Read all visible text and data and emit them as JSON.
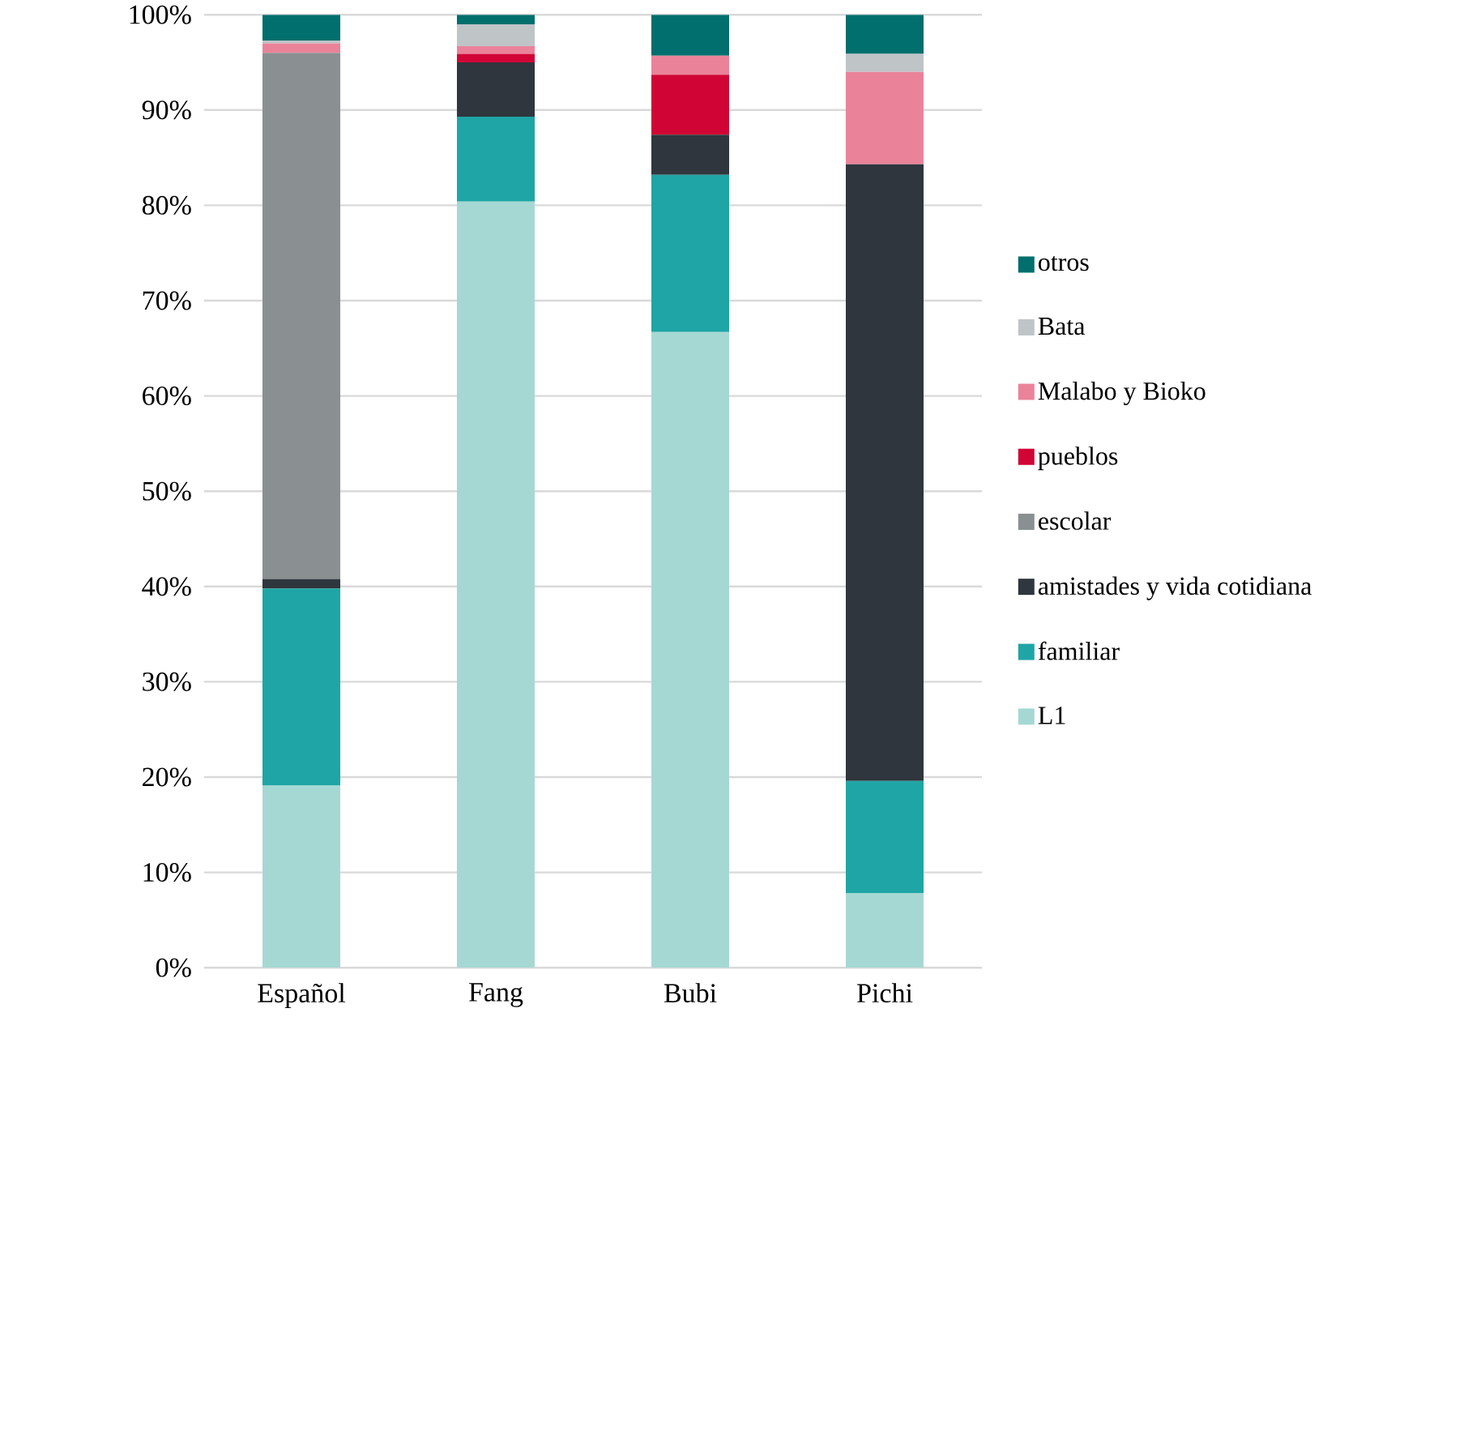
{
  "chart_data": {
    "type": "bar",
    "stacked": true,
    "categories": [
      "Español",
      "Fang",
      "Bubi",
      "Pichi"
    ],
    "series": [
      {
        "name": "L1",
        "color": "#a6d8d3",
        "values": [
          19.1,
          80.4,
          66.7,
          7.8
        ]
      },
      {
        "name": "familiar",
        "color": "#1fa5a5",
        "values": [
          20.7,
          8.9,
          16.5,
          11.8
        ]
      },
      {
        "name": "amistades y vida cotidiana",
        "color": "#2f363d",
        "values": [
          1.0,
          5.7,
          4.2,
          64.7
        ]
      },
      {
        "name": "escolar",
        "color": "#8a8f92",
        "values": [
          55.2,
          0,
          0,
          0
        ]
      },
      {
        "name": "pueblos",
        "color": "#d10535",
        "values": [
          0,
          0.9,
          6.3,
          0
        ]
      },
      {
        "name": "Malabo y Bioko",
        "color": "#ea8399",
        "values": [
          1.0,
          0.8,
          2.0,
          9.7
        ]
      },
      {
        "name": "Bata",
        "color": "#bfc4c7",
        "values": [
          0.3,
          2.3,
          0,
          1.9
        ]
      },
      {
        "name": "otros",
        "color": "#006f6d",
        "values": [
          2.7,
          1.0,
          4.3,
          4.1
        ]
      }
    ],
    "ylim": [
      0,
      100
    ],
    "yticks": [
      {
        "value": 0,
        "label": "0%"
      },
      {
        "value": 10,
        "label": "10%"
      },
      {
        "value": 20,
        "label": "20%"
      },
      {
        "value": 30,
        "label": "30%"
      },
      {
        "value": 40,
        "label": "40%"
      },
      {
        "value": 50,
        "label": "50%"
      },
      {
        "value": 60,
        "label": "60%"
      },
      {
        "value": 70,
        "label": "70%"
      },
      {
        "value": 80,
        "label": "80%"
      },
      {
        "value": 90,
        "label": "90%"
      },
      {
        "value": 100,
        "label": "100%"
      }
    ],
    "grid": "y",
    "legend": "right"
  }
}
